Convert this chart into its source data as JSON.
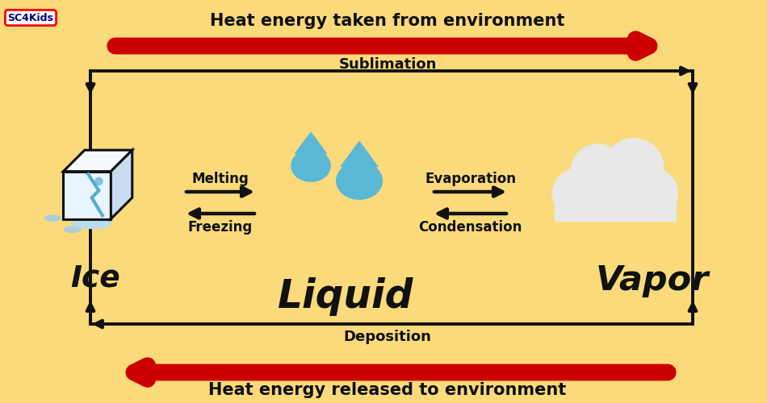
{
  "bg_color": "#FADA7A",
  "title_top": "Heat energy taken from environment",
  "title_bottom": "Heat energy released to environment",
  "sublimation_label": "Sublimation",
  "deposition_label": "Deposition",
  "melting_label": "Melting",
  "freezing_label": "Freezing",
  "evaporation_label": "Evaporation",
  "condensation_label": "Condensation",
  "ice_label": "Ice",
  "liquid_label": "Liquid",
  "vapor_label": "Vapor",
  "arrow_color_red": "#CC0000",
  "arrow_color_black": "#111111",
  "text_color": "#111111",
  "drop_color": "#5BB8D4",
  "cloud_color": "#E8E8E8",
  "cloud_shadow": "#C0C0C0",
  "ice_front": "#E8F4FF",
  "ice_top": "#F5FAFF",
  "ice_right": "#C8DDF0",
  "ice_crack": "#5AACCC"
}
